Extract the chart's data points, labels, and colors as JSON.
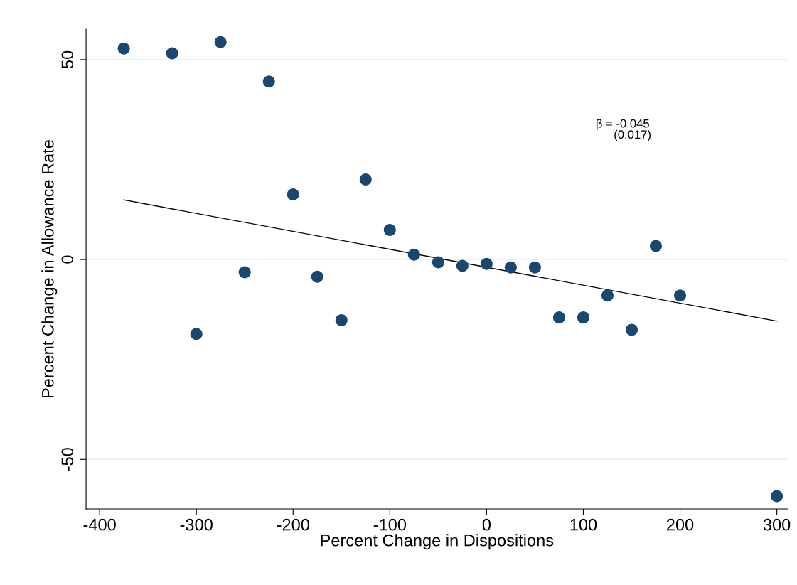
{
  "chart_data": {
    "type": "scatter",
    "xlabel": "Percent Change in Dispositions",
    "ylabel": "Percent Change in Allowance Rate",
    "annotations": [
      "β = -0.045\n      (0.017)"
    ],
    "series": [
      {
        "color": "#1a476f",
        "marker": "circle",
        "x": [
          -375,
          -325,
          -300,
          -275,
          -250,
          -225,
          -200,
          -175,
          -150,
          -125,
          -100,
          -75,
          -50,
          -25,
          0,
          25,
          50,
          75,
          100,
          125,
          150,
          175,
          200,
          300
        ],
        "values": [
          52.8,
          51.6,
          -18.6,
          54.4,
          -3.2,
          44.5,
          16.3,
          -4.3,
          -15.2,
          20.0,
          7.4,
          1.2,
          -0.7,
          -1.6,
          -1.1,
          -2.0,
          -2.0,
          -14.5,
          -14.5,
          -9.0,
          -17.6,
          3.4,
          -9.0,
          -59.2
        ]
      },
      {
        "type": "line",
        "color": "#000000",
        "marker": "none",
        "x": [
          -375,
          300
        ],
        "values": [
          14.9,
          -15.4
        ]
      }
    ],
    "xlim": [
      -414,
      311
    ],
    "ylim": [
      -62.4,
      57.6
    ],
    "xticks": [
      -400,
      -300,
      -200,
      -100,
      0,
      100,
      200,
      300
    ],
    "yticks": [
      -50,
      0,
      50
    ],
    "grid": "y",
    "legend": false
  }
}
